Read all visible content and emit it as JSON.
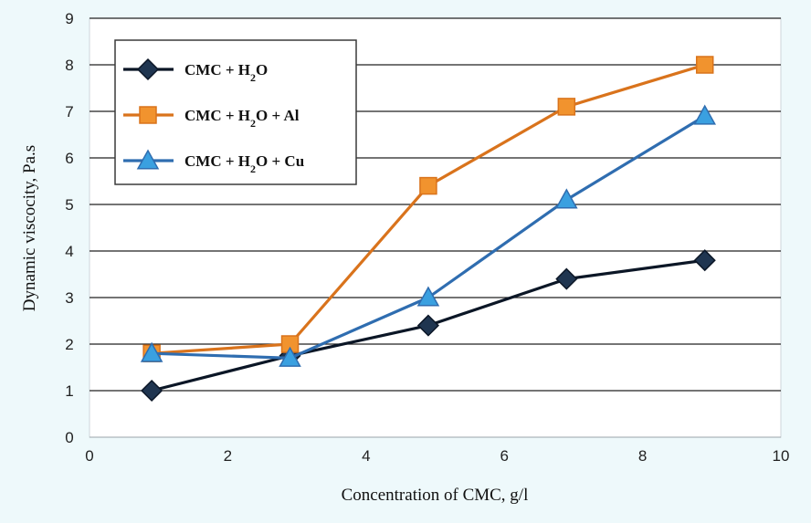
{
  "chart_data": {
    "type": "line",
    "xlabel": "Concentration of CMC, g/l",
    "ylabel": "Dynamic viscocity, Pa.s",
    "xlim": [
      0,
      10
    ],
    "ylim": [
      0,
      9
    ],
    "x_ticks": [
      "0",
      "2",
      "4",
      "6",
      "8",
      "10"
    ],
    "y_ticks": [
      "0",
      "1",
      "2",
      "3",
      "4",
      "5",
      "6",
      "7",
      "8",
      "9"
    ],
    "grid": "horizontal",
    "legend_position": "top-left",
    "x": [
      0.9,
      2.9,
      4.9,
      6.9,
      8.9
    ],
    "series": [
      {
        "name": "CMC + H2O",
        "name_main": "CMC + H",
        "name_sub": "2",
        "name_rest": "O",
        "marker": "diamond",
        "color": "#0b1626",
        "fill": "#1f3550",
        "values": [
          1.0,
          1.75,
          2.4,
          3.4,
          3.8
        ]
      },
      {
        "name": "CMC + H2O + Al",
        "name_main": "CMC + H",
        "name_sub": "2",
        "name_rest": "O + Al",
        "marker": "square",
        "color": "#d9731c",
        "fill": "#f1932e",
        "values": [
          1.8,
          2.0,
          5.4,
          7.1,
          8.0
        ]
      },
      {
        "name": "CMC + H2O + Cu",
        "name_main": "CMC + H",
        "name_sub": "2",
        "name_rest": "O + Cu",
        "marker": "triangle",
        "color": "#2f6db0",
        "fill": "#3aa0e0",
        "values": [
          1.8,
          1.7,
          3.0,
          5.1,
          6.9
        ]
      }
    ]
  }
}
